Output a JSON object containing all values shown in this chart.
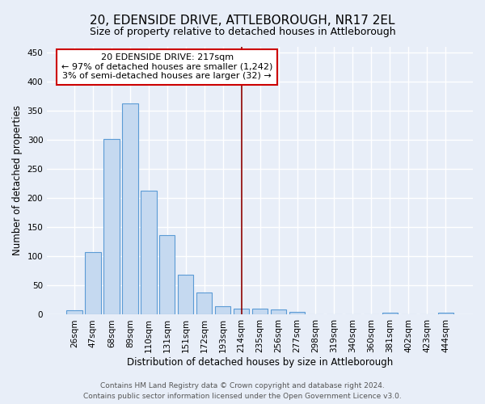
{
  "title": "20, EDENSIDE DRIVE, ATTLEBOROUGH, NR17 2EL",
  "subtitle": "Size of property relative to detached houses in Attleborough",
  "xlabel": "Distribution of detached houses by size in Attleborough",
  "ylabel": "Number of detached properties",
  "categories": [
    "26sqm",
    "47sqm",
    "68sqm",
    "89sqm",
    "110sqm",
    "131sqm",
    "151sqm",
    "172sqm",
    "193sqm",
    "214sqm",
    "235sqm",
    "256sqm",
    "277sqm",
    "298sqm",
    "319sqm",
    "340sqm",
    "360sqm",
    "381sqm",
    "402sqm",
    "423sqm",
    "444sqm"
  ],
  "values": [
    8,
    108,
    302,
    362,
    213,
    137,
    69,
    38,
    14,
    10,
    10,
    9,
    5,
    0,
    0,
    0,
    0,
    3,
    0,
    0,
    3
  ],
  "bar_color": "#c5d9f0",
  "bar_edge_color": "#5b9bd5",
  "annotation_line_index": 9,
  "annotation_box_text": "20 EDENSIDE DRIVE: 217sqm\n← 97% of detached houses are smaller (1,242)\n3% of semi-detached houses are larger (32) →",
  "annotation_line_color": "#8b0000",
  "ylim": [
    0,
    460
  ],
  "yticks": [
    0,
    50,
    100,
    150,
    200,
    250,
    300,
    350,
    400,
    450
  ],
  "background_color": "#e8eef8",
  "grid_color": "#ffffff",
  "footer_line1": "Contains HM Land Registry data © Crown copyright and database right 2024.",
  "footer_line2": "Contains public sector information licensed under the Open Government Licence v3.0.",
  "box_facecolor": "#ffffff",
  "box_edgecolor": "#cc0000",
  "title_fontsize": 11,
  "subtitle_fontsize": 9,
  "label_fontsize": 8.5,
  "tick_fontsize": 7.5,
  "annotation_fontsize": 8,
  "footer_fontsize": 6.5
}
